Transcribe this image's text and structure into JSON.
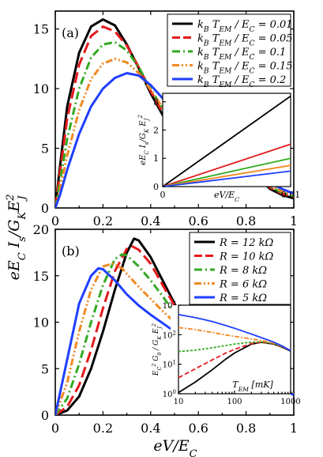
{
  "chart_data": [
    {
      "panel": "(a)",
      "type": "line",
      "ylabel": "eE_C I_s/G_K E_J^2",
      "xlim": [
        0,
        1
      ],
      "ylim": [
        0,
        16.5
      ],
      "xticks": [
        "0",
        "0.2",
        "0.4",
        "0.6",
        "0.8",
        "1"
      ],
      "yticks": [
        "0",
        "5",
        "10",
        "15"
      ],
      "legend_position": "top-right",
      "series": [
        {
          "name": "k_B T_EM / E_C = 0.01",
          "color": "#000000",
          "dash": "solid",
          "x": [
            0,
            0.02,
            0.05,
            0.1,
            0.15,
            0.2,
            0.25,
            0.3,
            0.35,
            0.4,
            0.45,
            0.5,
            0.6,
            0.7,
            0.8,
            0.88,
            0.9,
            0.95,
            1.0
          ],
          "y": [
            0,
            3.5,
            8.5,
            13.0,
            15.2,
            15.8,
            15.3,
            13.7,
            11.7,
            9.6,
            7.8,
            6.3,
            4.4,
            3.2,
            2.4,
            2.0,
            1.6,
            1.1,
            0.8
          ]
        },
        {
          "name": "k_B T_EM / E_C = 0.05",
          "color": "#e41a1c",
          "dash": "long",
          "x": [
            0,
            0.02,
            0.05,
            0.1,
            0.15,
            0.2,
            0.25,
            0.3,
            0.35,
            0.4,
            0.45,
            0.5,
            0.6,
            0.7,
            0.8,
            0.88,
            0.9,
            0.95,
            1.0
          ],
          "y": [
            0,
            3.0,
            7.5,
            12.0,
            14.4,
            15.2,
            14.8,
            13.6,
            11.8,
            9.8,
            8.0,
            6.5,
            4.5,
            3.3,
            2.4,
            2.1,
            1.7,
            1.2,
            0.9
          ]
        },
        {
          "name": "k_B T_EM / E_C = 0.1",
          "color": "#33aa22",
          "dash": "dashdot",
          "x": [
            0,
            0.02,
            0.05,
            0.1,
            0.15,
            0.2,
            0.25,
            0.3,
            0.35,
            0.4,
            0.45,
            0.5,
            0.6,
            0.7,
            0.8,
            0.88,
            0.9,
            0.95,
            1.0
          ],
          "y": [
            0,
            2.2,
            5.8,
            10.0,
            12.6,
            13.7,
            13.9,
            13.2,
            11.8,
            10.0,
            8.3,
            6.8,
            4.7,
            3.4,
            2.5,
            2.2,
            1.8,
            1.3,
            1.0
          ]
        },
        {
          "name": "k_B T_EM / E_C = 0.15",
          "color": "#f08a24",
          "dash": "dashdotdot",
          "x": [
            0,
            0.02,
            0.05,
            0.1,
            0.15,
            0.2,
            0.25,
            0.3,
            0.35,
            0.4,
            0.45,
            0.5,
            0.6,
            0.7,
            0.8,
            0.88,
            0.9,
            0.95,
            1.0
          ],
          "y": [
            0,
            1.6,
            4.4,
            8.2,
            10.8,
            12.1,
            12.5,
            12.2,
            11.3,
            9.9,
            8.4,
            7.0,
            4.9,
            3.5,
            2.6,
            2.3,
            1.9,
            1.4,
            1.1
          ]
        },
        {
          "name": "k_B T_EM / E_C = 0.2",
          "color": "#1f3fff",
          "dash": "solid",
          "x": [
            0,
            0.02,
            0.05,
            0.1,
            0.15,
            0.2,
            0.25,
            0.3,
            0.35,
            0.4,
            0.45,
            0.5,
            0.6,
            0.7,
            0.8,
            0.88,
            0.9,
            0.95,
            1.0
          ],
          "y": [
            0,
            1.1,
            3.2,
            6.2,
            8.5,
            10.0,
            10.9,
            11.3,
            11.1,
            10.3,
            9.2,
            7.8,
            5.4,
            3.8,
            2.8,
            2.5,
            2.1,
            1.6,
            1.2
          ]
        }
      ],
      "inset": {
        "type": "line",
        "xlabel": "eV/E_C",
        "ylabel": "eE_C I_s/G_K E_J^2",
        "xlim": [
          0,
          0.01
        ],
        "ylim": [
          0,
          3.3
        ],
        "xticks": [
          "0",
          "0.01"
        ],
        "yticks": [
          "0",
          "1",
          "2",
          "3"
        ],
        "series": [
          {
            "color": "#000000",
            "x": [
              0,
              0.01
            ],
            "y": [
              0,
              3.2
            ]
          },
          {
            "color": "#e41a1c",
            "x": [
              0,
              0.01
            ],
            "y": [
              0,
              1.5
            ]
          },
          {
            "color": "#33aa22",
            "x": [
              0,
              0.01
            ],
            "y": [
              0,
              1.0
            ]
          },
          {
            "color": "#f08a24",
            "x": [
              0,
              0.01
            ],
            "y": [
              0,
              0.75
            ]
          },
          {
            "color": "#1f3fff",
            "x": [
              0,
              0.01
            ],
            "y": [
              0,
              0.55
            ]
          }
        ]
      }
    },
    {
      "panel": "(b)",
      "type": "line",
      "xlabel": "eV/E_C",
      "ylabel": "eE_C I_s/G_K E_J^2",
      "xlim": [
        0,
        1
      ],
      "ylim": [
        0,
        20
      ],
      "xticks": [
        "0",
        "0.2",
        "0.4",
        "0.6",
        "0.8",
        "1"
      ],
      "yticks": [
        "0",
        "5",
        "10",
        "15",
        "20"
      ],
      "legend_position": "top-right",
      "series": [
        {
          "name": "R = 12 kΩ",
          "color": "#000000",
          "dash": "solid",
          "x": [
            0,
            0.05,
            0.1,
            0.15,
            0.2,
            0.25,
            0.3,
            0.33,
            0.35,
            0.4,
            0.45,
            0.5,
            0.55,
            0.6,
            0.7,
            0.8,
            0.9,
            1.0
          ],
          "y": [
            0,
            0.5,
            2.0,
            5.0,
            9.0,
            13.5,
            17.5,
            19.0,
            18.8,
            17.0,
            14.5,
            12.0,
            9.8,
            8.0,
            5.5,
            4.0,
            3.0,
            2.2
          ]
        },
        {
          "name": "R = 10 kΩ",
          "color": "#e41a1c",
          "dash": "long",
          "x": [
            0,
            0.05,
            0.1,
            0.15,
            0.2,
            0.25,
            0.3,
            0.32,
            0.35,
            0.4,
            0.45,
            0.5,
            0.55,
            0.6,
            0.7,
            0.8,
            0.9,
            1.0
          ],
          "y": [
            0,
            0.9,
            3.2,
            7.0,
            11.5,
            15.5,
            17.9,
            18.2,
            17.8,
            16.3,
            14.0,
            11.8,
            9.8,
            8.1,
            5.6,
            4.1,
            3.1,
            2.3
          ]
        },
        {
          "name": "R = 8 kΩ",
          "color": "#33aa22",
          "dash": "dashdot",
          "x": [
            0,
            0.05,
            0.1,
            0.15,
            0.2,
            0.25,
            0.28,
            0.3,
            0.35,
            0.4,
            0.45,
            0.5,
            0.55,
            0.6,
            0.7,
            0.8,
            0.9,
            1.0
          ],
          "y": [
            0,
            1.8,
            5.5,
            10.0,
            14.0,
            16.8,
            17.3,
            17.2,
            16.0,
            14.5,
            12.8,
            11.0,
            9.4,
            7.9,
            5.6,
            4.1,
            3.1,
            2.3
          ]
        },
        {
          "name": "R = 6 kΩ",
          "color": "#f08a24",
          "dash": "dashdotdot",
          "x": [
            0,
            0.05,
            0.1,
            0.15,
            0.2,
            0.24,
            0.28,
            0.3,
            0.35,
            0.4,
            0.45,
            0.5,
            0.55,
            0.6,
            0.7,
            0.8,
            0.9,
            1.0
          ],
          "y": [
            0,
            3.5,
            9.0,
            13.5,
            16.0,
            16.3,
            15.8,
            15.2,
            13.8,
            12.5,
            11.2,
            10.0,
            8.8,
            7.6,
            5.5,
            4.0,
            3.0,
            2.3
          ]
        },
        {
          "name": "R = 5 kΩ",
          "color": "#1f3fff",
          "dash": "solid",
          "x": [
            0,
            0.05,
            0.1,
            0.15,
            0.18,
            0.2,
            0.25,
            0.3,
            0.35,
            0.4,
            0.45,
            0.5,
            0.55,
            0.6,
            0.7,
            0.8,
            0.9,
            1.0
          ],
          "y": [
            0,
            6.0,
            12.0,
            15.0,
            15.8,
            15.7,
            14.5,
            13.0,
            11.8,
            10.8,
            9.9,
            9.0,
            8.2,
            7.3,
            5.4,
            4.0,
            3.0,
            2.2
          ]
        }
      ],
      "inset": {
        "type": "line",
        "xlabel": "T_EM [mK]",
        "ylabel": "E_C^2 G_0 / G_K E_J^2",
        "xscale": "log",
        "yscale": "log",
        "xlim": [
          10,
          1000
        ],
        "ylim": [
          1,
          1000
        ],
        "xticks": [
          "10",
          "100",
          "1000"
        ],
        "yticks": [
          "10^0",
          "10^1",
          "10^2",
          "10^3"
        ],
        "series": [
          {
            "color": "#000000",
            "x": [
              10,
              20,
              40,
              70,
              100,
              200,
              300,
              500,
              700,
              1000
            ],
            "y": [
              1.1,
              2.5,
              6.5,
              15,
              24,
              48,
              55,
              48,
              38,
              28
            ]
          },
          {
            "color": "#e41a1c",
            "x": [
              10,
              20,
              40,
              70,
              100,
              200,
              300,
              500,
              700,
              1000
            ],
            "y": [
              3.5,
              7,
              14,
              24,
              32,
              50,
              56,
              49,
              39,
              29
            ]
          },
          {
            "color": "#33aa22",
            "x": [
              10,
              20,
              40,
              70,
              100,
              200,
              300,
              500,
              700,
              1000
            ],
            "y": [
              27,
              30,
              36,
              43,
              48,
              56,
              57,
              50,
              40,
              29
            ]
          },
          {
            "color": "#f08a24",
            "x": [
              10,
              20,
              40,
              70,
              100,
              200,
              300,
              500,
              700,
              1000
            ],
            "y": [
              175,
              150,
              120,
              98,
              88,
              72,
              64,
              52,
              41,
              29
            ]
          },
          {
            "color": "#1f3fff",
            "x": [
              10,
              20,
              40,
              70,
              100,
              200,
              300,
              500,
              700,
              1000
            ],
            "y": [
              480,
              380,
              280,
              205,
              165,
              105,
              80,
              56,
              42,
              29
            ]
          }
        ]
      }
    }
  ]
}
